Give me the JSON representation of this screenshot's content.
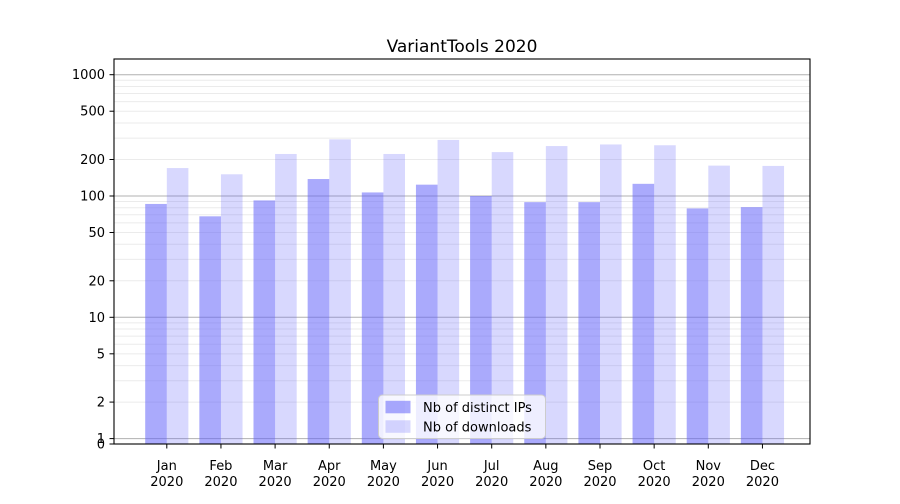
{
  "title": "VariantTools 2020",
  "chart_data": {
    "type": "bar",
    "title": "VariantTools 2020",
    "categories": [
      "Jan",
      "Feb",
      "Mar",
      "Apr",
      "May",
      "Jun",
      "Jul",
      "Aug",
      "Sep",
      "Oct",
      "Nov",
      "Dec"
    ],
    "category_year": "2020",
    "series": [
      {
        "name": "Nb of distinct IPs",
        "values": [
          86,
          68,
          92,
          138,
          107,
          124,
          100,
          89,
          89,
          126,
          79,
          81
        ],
        "fill_alpha": 0.55
      },
      {
        "name": "Nb of downloads",
        "values": [
          170,
          151,
          222,
          293,
          222,
          290,
          230,
          258,
          266,
          262,
          178,
          177
        ],
        "fill_alpha": 0.25
      }
    ],
    "bar_base_color": "#6464fa",
    "yscale": "symlog",
    "y_ticks": [
      0,
      1,
      2,
      5,
      10,
      20,
      50,
      100,
      200,
      500,
      1000
    ],
    "ylim": [
      0,
      1350
    ],
    "xlabel": "",
    "ylabel": "",
    "grid": "both",
    "legend_position": "lower center"
  },
  "colors": {
    "major_grid": "#b0b0b0",
    "minor_grid": "#ebebeb",
    "spine": "#000000",
    "legend_border": "#cccccc",
    "legend_bg": "#ffffff"
  }
}
